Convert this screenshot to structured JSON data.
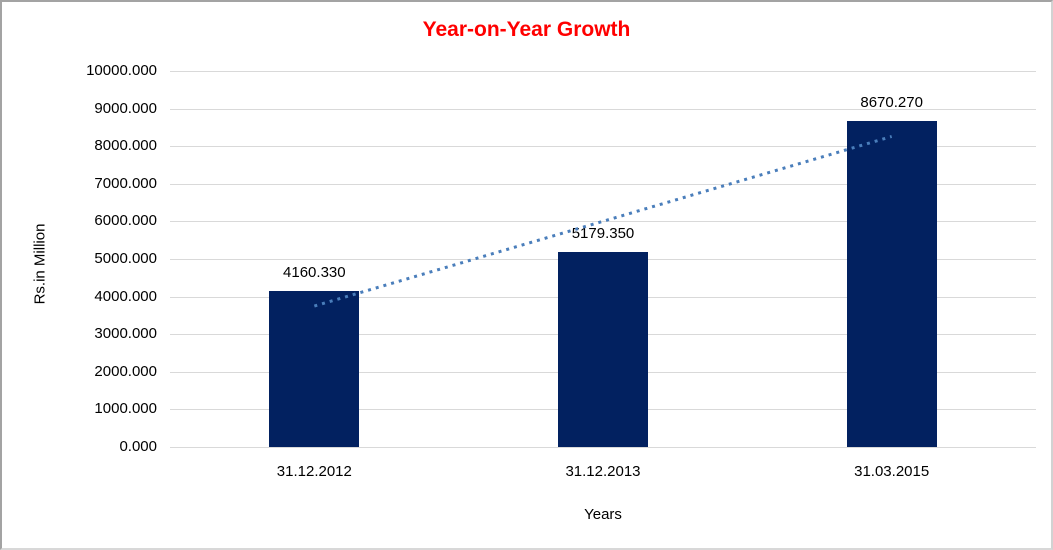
{
  "chart_data": {
    "type": "bar",
    "title": "Year-on-Year Growth",
    "xlabel": "Years",
    "ylabel": "Rs.in Million",
    "categories": [
      "31.12.2012",
      "31.12.2013",
      "31.03.2015"
    ],
    "values": [
      4160.33,
      5179.35,
      8670.27
    ],
    "value_labels": [
      "4160.330",
      "5179.350",
      "8670.270"
    ],
    "ylim": [
      0,
      10000
    ],
    "ytick_step": 1000,
    "ytick_labels": [
      "0.000",
      "1000.000",
      "2000.000",
      "3000.000",
      "4000.000",
      "5000.000",
      "6000.000",
      "7000.000",
      "8000.000",
      "9000.000",
      "10000.000"
    ],
    "grid": true,
    "legend": "none",
    "trendline": {
      "type": "linear",
      "style": "dotted"
    },
    "colors": {
      "bar": "#022160",
      "title": "#ff0000",
      "gridline": "#d9d9d9",
      "trendline": "#4a7ebb",
      "text": "#000000",
      "background": "#ffffff"
    }
  }
}
